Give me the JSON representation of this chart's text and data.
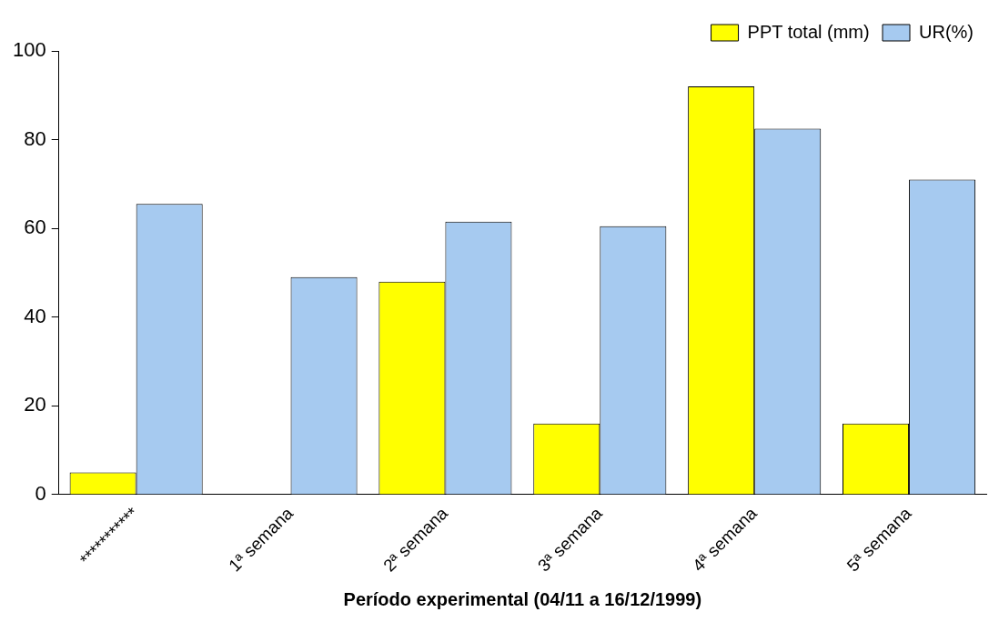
{
  "chart_data": {
    "type": "bar",
    "xlabel": "Período experimental (04/11 a 16/12/1999)",
    "categories": [
      "***********",
      "1ª semana",
      "2ª semana",
      "3ª semana",
      "4ª semana",
      "5ª semana"
    ],
    "series": [
      {
        "name": "PPT total (mm)",
        "color": "#ffff00",
        "values": [
          5,
          0,
          48,
          16,
          92,
          16
        ]
      },
      {
        "name": "UR(%)",
        "color": "#a6caf0",
        "values": [
          65.5,
          49,
          61.5,
          60.5,
          82.5,
          71
        ]
      }
    ],
    "ylim": [
      0,
      100
    ],
    "yticks": [
      0,
      20,
      40,
      60,
      80,
      100
    ],
    "grid": false,
    "legend": "top right"
  }
}
